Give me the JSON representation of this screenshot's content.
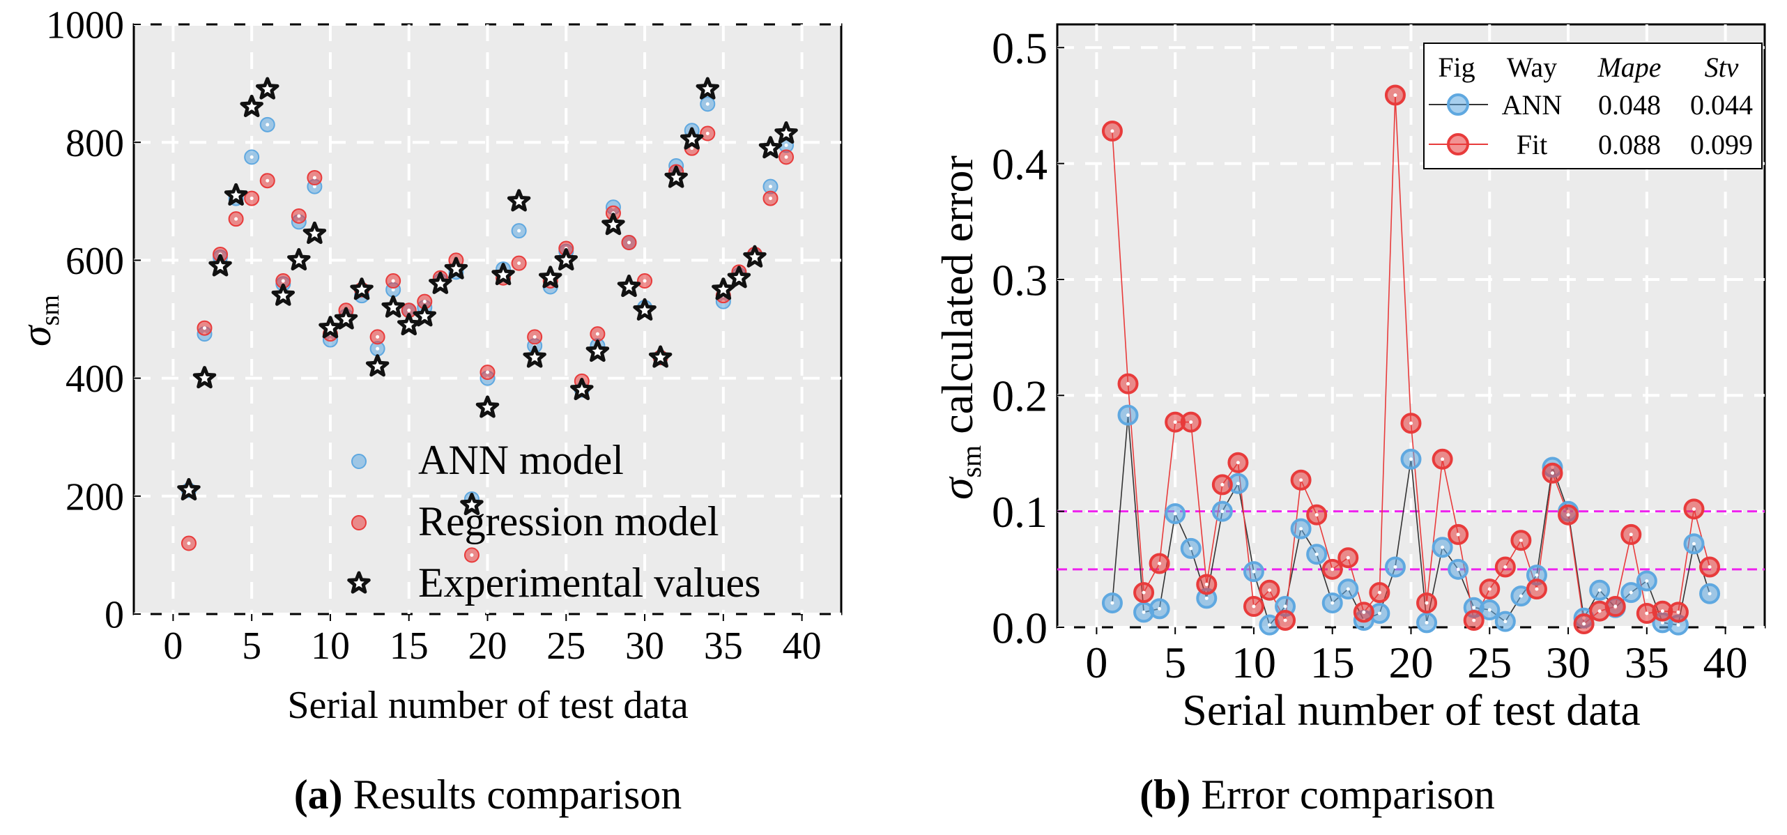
{
  "chart_data": [
    {
      "type": "scatter",
      "id": "a",
      "caption_letter": "(a)",
      "caption_text": " Results comparison",
      "xlabel": "Serial number of test data",
      "ylabel_symbol": "σ",
      "ylabel_sub": "sm",
      "xlim": [
        -2.5,
        42.5
      ],
      "ylim": [
        0,
        1000
      ],
      "xticks": [
        0,
        5,
        10,
        15,
        20,
        25,
        30,
        35,
        40
      ],
      "yticks": [
        0,
        200,
        400,
        600,
        800,
        1000
      ],
      "ytick_labels": [
        "0",
        "200",
        "400",
        "600",
        "800",
        "1000"
      ],
      "colors": {
        "ann": "#5fa8e0",
        "regression": "#e83b3b",
        "experimental": "#111111",
        "panel": "#ebebeb",
        "grid": "#ffffff"
      },
      "legend": [
        {
          "key": "ann",
          "label": "ANN model"
        },
        {
          "key": "regression",
          "label": "Regression model"
        },
        {
          "key": "experimental",
          "label": "Experimental values"
        }
      ],
      "x": [
        1,
        2,
        3,
        4,
        5,
        6,
        7,
        8,
        9,
        10,
        11,
        12,
        13,
        14,
        15,
        16,
        17,
        18,
        19,
        20,
        21,
        22,
        23,
        24,
        25,
        26,
        27,
        28,
        29,
        30,
        31,
        32,
        33,
        34,
        35,
        36,
        37,
        38,
        39
      ],
      "series": [
        {
          "name": "ANN model",
          "key": "ann",
          "values": [
            210,
            475,
            605,
            705,
            775,
            830,
            560,
            665,
            725,
            465,
            505,
            540,
            450,
            550,
            515,
            520,
            565,
            580,
            195,
            400,
            585,
            650,
            455,
            555,
            615,
            380,
            455,
            690,
            630,
            520,
            435,
            760,
            820,
            865,
            530,
            575,
            610,
            725,
            795
          ]
        },
        {
          "name": "Regression model",
          "key": "regression",
          "values": [
            120,
            485,
            610,
            670,
            705,
            735,
            565,
            675,
            740,
            475,
            515,
            550,
            470,
            565,
            515,
            530,
            570,
            600,
            100,
            410,
            570,
            595,
            470,
            565,
            620,
            395,
            475,
            680,
            630,
            565,
            435,
            750,
            790,
            815,
            540,
            580,
            610,
            705,
            775
          ]
        },
        {
          "name": "Experimental values",
          "key": "experimental",
          "values": [
            210,
            400,
            590,
            710,
            860,
            890,
            540,
            600,
            645,
            485,
            500,
            550,
            420,
            520,
            490,
            505,
            560,
            585,
            185,
            350,
            575,
            700,
            435,
            570,
            600,
            380,
            445,
            660,
            555,
            515,
            435,
            740,
            805,
            890,
            550,
            570,
            605,
            790,
            815
          ]
        }
      ]
    },
    {
      "type": "line",
      "id": "b",
      "caption_letter": "(b)",
      "caption_text": " Error comparison",
      "xlabel": "Serial number of test data",
      "ylabel_symbol": "σ",
      "ylabel_sub": "sm",
      "ylabel_rest": " calculated error",
      "xlim": [
        -2.5,
        42.5
      ],
      "ylim": [
        0,
        0.52
      ],
      "xticks": [
        0,
        5,
        10,
        15,
        20,
        25,
        30,
        35,
        40
      ],
      "yticks": [
        0.0,
        0.1,
        0.2,
        0.3,
        0.4,
        0.5
      ],
      "ytick_labels": [
        "0.0",
        "0.1",
        "0.2",
        "0.3",
        "0.4",
        "0.5"
      ],
      "reference_lines": [
        0.1,
        0.05
      ],
      "colors": {
        "ann": "#5fa8e0",
        "fit": "#e83b3b",
        "ann_line": "#333333",
        "fit_line": "#e83b3b",
        "reference": "#ee22ee",
        "panel": "#ebebeb",
        "grid": "#ffffff"
      },
      "legend": {
        "headers": [
          "Fig",
          "Way",
          "Mape",
          "Stv"
        ],
        "rows": [
          {
            "key": "ann",
            "way": "ANN",
            "mape": "0.048",
            "stv": "0.044"
          },
          {
            "key": "fit",
            "way": "Fit",
            "mape": "0.088",
            "stv": "0.099"
          }
        ]
      },
      "x": [
        1,
        2,
        3,
        4,
        5,
        6,
        7,
        8,
        9,
        10,
        11,
        12,
        13,
        14,
        15,
        16,
        17,
        18,
        19,
        20,
        21,
        22,
        23,
        24,
        25,
        26,
        27,
        28,
        29,
        30,
        31,
        32,
        33,
        34,
        35,
        36,
        37,
        38,
        39
      ],
      "series": [
        {
          "name": "ANN",
          "key": "ann",
          "values": [
            0.021,
            0.183,
            0.013,
            0.016,
            0.098,
            0.068,
            0.025,
            0.1,
            0.124,
            0.048,
            0.002,
            0.018,
            0.085,
            0.063,
            0.021,
            0.033,
            0.006,
            0.012,
            0.052,
            0.145,
            0.004,
            0.069,
            0.05,
            0.017,
            0.015,
            0.005,
            0.027,
            0.045,
            0.138,
            0.1,
            0.008,
            0.032,
            0.017,
            0.03,
            0.04,
            0.004,
            0.002,
            0.072,
            0.029
          ]
        },
        {
          "name": "Fit",
          "key": "fit",
          "values": [
            0.428,
            0.21,
            0.03,
            0.055,
            0.177,
            0.177,
            0.037,
            0.123,
            0.142,
            0.018,
            0.032,
            0.006,
            0.127,
            0.097,
            0.05,
            0.06,
            0.013,
            0.03,
            0.459,
            0.176,
            0.021,
            0.145,
            0.08,
            0.006,
            0.033,
            0.052,
            0.075,
            0.033,
            0.133,
            0.097,
            0.003,
            0.014,
            0.018,
            0.08,
            0.012,
            0.014,
            0.013,
            0.102,
            0.052
          ]
        }
      ]
    }
  ]
}
